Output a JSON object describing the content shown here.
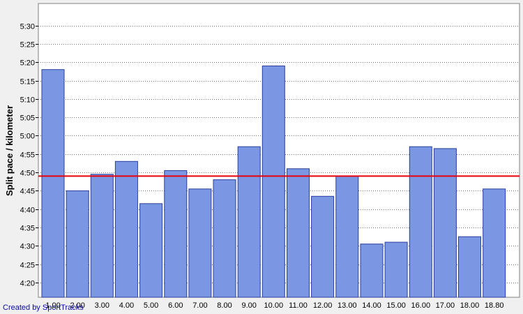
{
  "chart_data": {
    "type": "bar",
    "ylabel": "Split pace / kilometer",
    "xlabel": "",
    "categories": [
      "1.00",
      "2.00",
      "3.00",
      "4.00",
      "5.00",
      "6.00",
      "7.00",
      "8.00",
      "9.00",
      "10.00",
      "11.00",
      "12.00",
      "13.00",
      "14.00",
      "15.00",
      "16.00",
      "17.00",
      "18.00",
      "18.80"
    ],
    "values_seconds": [
      318,
      285,
      289.5,
      293,
      281.5,
      290.5,
      285.5,
      288,
      297,
      319,
      291,
      283.5,
      289,
      270.5,
      271,
      297,
      296.5,
      272.5,
      285.5
    ],
    "values": [
      "5:18",
      "4:45",
      "4:49.5",
      "4:53",
      "4:41.5",
      "4:50.5",
      "4:45.5",
      "4:48",
      "4:57",
      "5:19",
      "4:51",
      "4:43.5",
      "4:49",
      "4:30.5",
      "4:31",
      "4:57",
      "4:56.5",
      "4:32.5",
      "4:45.5"
    ],
    "ylim_seconds": [
      256,
      336
    ],
    "yticks_seconds": [
      260,
      265,
      270,
      275,
      280,
      285,
      290,
      295,
      300,
      305,
      310,
      315,
      320,
      325,
      330
    ],
    "ytick_labels": [
      "4:20",
      "4:25",
      "4:30",
      "4:35",
      "4:40",
      "4:45",
      "4:50",
      "4:55",
      "5:00",
      "5:05",
      "5:10",
      "5:15",
      "5:20",
      "5:25",
      "5:30"
    ],
    "average_line_seconds": 289,
    "grid": "horizontal-dotted",
    "legend": "none",
    "colors": {
      "bar_fill": "#7b96e2",
      "bar_stroke": "#2a3f9e",
      "average_line": "#e8000a",
      "plot_background": "#ffffff",
      "gridline": "#707070"
    }
  },
  "footer": {
    "credit": "Created by SportTracks"
  }
}
